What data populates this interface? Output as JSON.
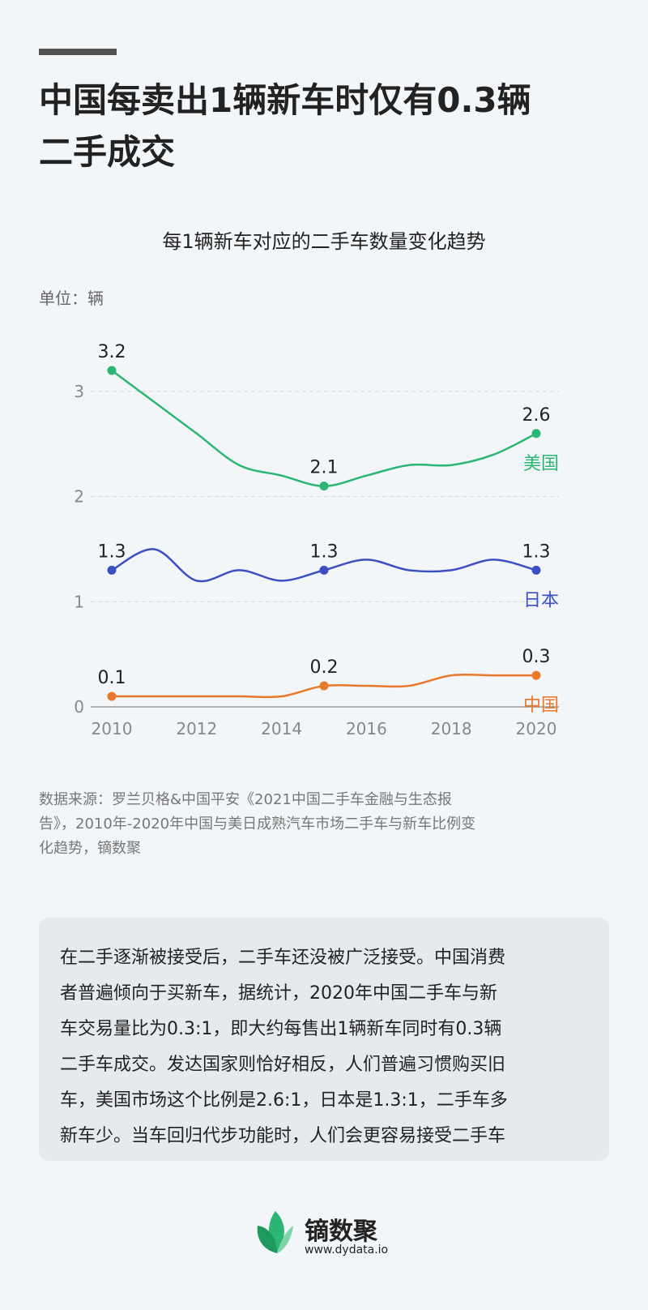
{
  "title_lines": [
    "中国每卖出1辆新车时仅有0.3辆",
    "二手成交"
  ],
  "chart_data": {
    "type": "line",
    "title": "每1辆新车对应的二手车数量变化趋势",
    "unit": "单位：辆",
    "xlim": [
      2010,
      2020
    ],
    "ylim": [
      0,
      3.3
    ],
    "x_ticks": [
      2010,
      2012,
      2014,
      2016,
      2018,
      2020
    ],
    "y_ticks": [
      0,
      1,
      2,
      3
    ],
    "grid": "horizontal dashed",
    "series": [
      {
        "name": "美国",
        "color": "#2bb673",
        "x": [
          2010,
          2011,
          2012,
          2013,
          2014,
          2015,
          2016,
          2017,
          2018,
          2019,
          2020
        ],
        "values": [
          3.2,
          2.9,
          2.6,
          2.3,
          2.2,
          2.1,
          2.2,
          2.3,
          2.3,
          2.4,
          2.6
        ],
        "point_labels": [
          {
            "x": 2010,
            "y": 3.2,
            "text": "3.2"
          },
          {
            "x": 2015,
            "y": 2.1,
            "text": "2.1"
          },
          {
            "x": 2020,
            "y": 2.6,
            "text": "2.6"
          }
        ]
      },
      {
        "name": "日本",
        "color": "#3b4fc4",
        "x": [
          2010,
          2011,
          2012,
          2013,
          2014,
          2015,
          2016,
          2017,
          2018,
          2019,
          2020
        ],
        "values": [
          1.3,
          1.5,
          1.2,
          1.3,
          1.2,
          1.3,
          1.4,
          1.3,
          1.3,
          1.4,
          1.3
        ],
        "point_labels": [
          {
            "x": 2010,
            "y": 1.3,
            "text": "1.3"
          },
          {
            "x": 2015,
            "y": 1.3,
            "text": "1.3"
          },
          {
            "x": 2020,
            "y": 1.3,
            "text": "1.3"
          }
        ]
      },
      {
        "name": "中国",
        "color": "#e8782a",
        "x": [
          2010,
          2011,
          2012,
          2013,
          2014,
          2015,
          2016,
          2017,
          2018,
          2019,
          2020
        ],
        "values": [
          0.1,
          0.1,
          0.1,
          0.1,
          0.1,
          0.2,
          0.2,
          0.2,
          0.3,
          0.3,
          0.3
        ],
        "point_labels": [
          {
            "x": 2010,
            "y": 0.1,
            "text": "0.1"
          },
          {
            "x": 2015,
            "y": 0.2,
            "text": "0.2"
          },
          {
            "x": 2020,
            "y": 0.3,
            "text": "0.3"
          }
        ]
      }
    ]
  },
  "source_lines": [
    "数据来源：罗兰贝格&中国平安《2021中国二手车金融与生态报",
    "告》，2010年-2020年中国与美日成熟汽车市场二手车与新车比例变",
    "化趋势，镝数聚"
  ],
  "note_lines": [
    "在二手逐渐被接受后，二手车还没被广泛接受。中国消费",
    "者普遍倾向于买新车，据统计，2020年中国二手车与新",
    "车交易量比为0.3:1，即大约每售出1辆新车同时有0.3辆",
    "二手车成交。发达国家则恰好相反，人们普遍习惯购买旧",
    "车，美国市场这个比例是2.6:1，日本是1.3:1，二手车多",
    "新车少。当车回归代步功能时，人们会更容易接受二手车"
  ],
  "brand": {
    "name": "镝数聚",
    "url": "www.dydata.io",
    "icon": "leaf-logo-icon",
    "icon_color": "#2bb673"
  }
}
